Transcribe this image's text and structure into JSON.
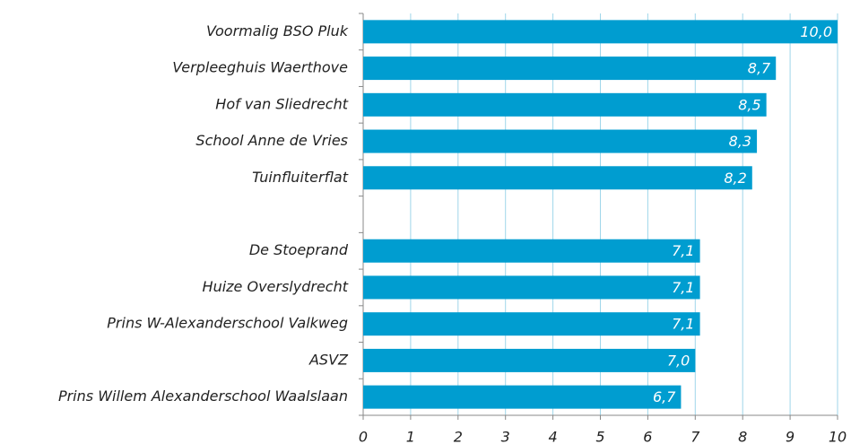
{
  "chart_data": {
    "type": "bar",
    "orientation": "horizontal",
    "categories": [
      "Voormalig BSO Pluk",
      "Verpleeghuis Waerthove",
      "Hof van Sliedrecht",
      "School Anne de Vries",
      "Tuinfluiterflat",
      null,
      "De Stoeprand",
      "Huize Overslydrecht",
      "Prins W-Alexanderschool Valkweg",
      "ASVZ",
      "Prins Willem Alexanderschool Waalslaan"
    ],
    "values": [
      10.0,
      8.7,
      8.5,
      8.3,
      8.2,
      null,
      7.1,
      7.1,
      7.1,
      7.0,
      6.7
    ],
    "value_labels": [
      "10,0",
      "8,7",
      "8,5",
      "8,3",
      "8,2",
      null,
      "7,1",
      "7,1",
      "7,1",
      "7,0",
      "6,7"
    ],
    "color": "#009dd0",
    "xlim": [
      0,
      10
    ],
    "xticks": [
      0,
      1,
      2,
      3,
      4,
      5,
      6,
      7,
      8,
      9,
      10
    ],
    "grid": true
  }
}
